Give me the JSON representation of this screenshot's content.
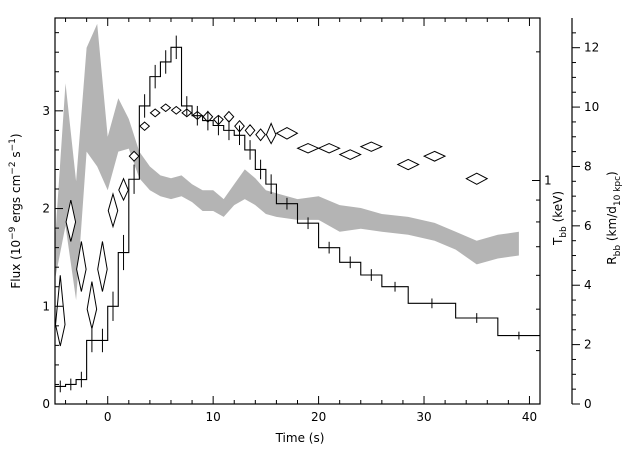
{
  "chart_data": {
    "type": "line",
    "xlabel": "Time (s)",
    "ylabel_left": "Flux (10^-9 ergs cm^-2 s^-1)",
    "ylabel_right_T": "T_bb (keV)",
    "ylabel_right_R": "R_bb (km/d_10 kpc)",
    "xlim": [
      -5,
      41
    ],
    "ylim_left": [
      0,
      3.95
    ],
    "ylim_R": [
      0,
      13
    ],
    "ylim_T_log": [
      0.3,
      2.4
    ],
    "grid": false,
    "x_ticks": [
      "0",
      "10",
      "20",
      "30",
      "40"
    ],
    "x_tick_values": [
      0,
      10,
      20,
      30,
      40
    ],
    "y_left_ticks": [
      "0",
      "1",
      "2",
      "3"
    ],
    "y_left_tick_values": [
      0,
      1,
      2,
      3
    ],
    "y_R_ticks": [
      "0",
      "2",
      "4",
      "6",
      "8",
      "10",
      "12"
    ],
    "y_R_tick_values": [
      0,
      2,
      4,
      6,
      8,
      10,
      12
    ],
    "y_T_ticks": [
      "1"
    ],
    "y_T_tick_values": [
      1
    ],
    "series": [
      {
        "kind": "flux-histogram",
        "bins": [
          [
            -5,
            -4,
            0.18
          ],
          [
            -4,
            -3,
            0.2
          ],
          [
            -3,
            -2,
            0.25
          ],
          [
            -2,
            -1,
            0.65
          ],
          [
            -1,
            0,
            0.65
          ],
          [
            0,
            1,
            1.0
          ],
          [
            1,
            2,
            1.55
          ],
          [
            2,
            3,
            2.3
          ],
          [
            3,
            4,
            3.05
          ],
          [
            4,
            5,
            3.35
          ],
          [
            5,
            6,
            3.5
          ],
          [
            6,
            7,
            3.65
          ],
          [
            7,
            8,
            3.05
          ],
          [
            8,
            9,
            2.95
          ],
          [
            9,
            10,
            2.9
          ],
          [
            10,
            11,
            2.85
          ],
          [
            11,
            12,
            2.8
          ],
          [
            12,
            13,
            2.75
          ],
          [
            13,
            14,
            2.6
          ],
          [
            14,
            15,
            2.4
          ],
          [
            15,
            16,
            2.25
          ],
          [
            16,
            18,
            2.05
          ],
          [
            18,
            20,
            1.85
          ],
          [
            20,
            22,
            1.6
          ],
          [
            22,
            24,
            1.45
          ],
          [
            24,
            26,
            1.32
          ],
          [
            26,
            28.5,
            1.2
          ],
          [
            28.5,
            33,
            1.03
          ],
          [
            33,
            37,
            0.88
          ],
          [
            37,
            41,
            0.7
          ]
        ],
        "errors": [
          [
            -4.5,
            0.06
          ],
          [
            -3.5,
            0.06
          ],
          [
            -2.5,
            0.08
          ],
          [
            -1.5,
            0.12
          ],
          [
            -0.5,
            0.12
          ],
          [
            0.5,
            0.15
          ],
          [
            1.5,
            0.18
          ],
          [
            2.5,
            0.15
          ],
          [
            3.5,
            0.12
          ],
          [
            4.5,
            0.12
          ],
          [
            5.5,
            0.12
          ],
          [
            6.5,
            0.12
          ],
          [
            7.5,
            0.1
          ],
          [
            8.5,
            0.1
          ],
          [
            9.5,
            0.1
          ],
          [
            10.5,
            0.1
          ],
          [
            11.5,
            0.1
          ],
          [
            12.5,
            0.1
          ],
          [
            13.5,
            0.1
          ],
          [
            14.5,
            0.1
          ],
          [
            15.5,
            0.1
          ],
          [
            17,
            0.06
          ],
          [
            19,
            0.06
          ],
          [
            21,
            0.06
          ],
          [
            23,
            0.06
          ],
          [
            25,
            0.06
          ],
          [
            27.25,
            0.05
          ],
          [
            30.75,
            0.05
          ],
          [
            35,
            0.05
          ],
          [
            39,
            0.04
          ]
        ]
      },
      {
        "kind": "radius-band",
        "x": [
          -5,
          -4,
          -3,
          -2,
          -1,
          0,
          1,
          2,
          3,
          4,
          5,
          6,
          7,
          8,
          9,
          10,
          11,
          12,
          13,
          14,
          15,
          16,
          18,
          20,
          22,
          24,
          26,
          28.5,
          31,
          33,
          35,
          37,
          39
        ],
        "low": [
          4.2,
          6.0,
          3.5,
          8.5,
          8.0,
          7.2,
          8.5,
          8.6,
          7.6,
          7.2,
          7.0,
          6.9,
          7.0,
          6.8,
          6.5,
          6.5,
          6.3,
          6.7,
          6.9,
          6.7,
          6.4,
          6.3,
          6.2,
          6.2,
          5.8,
          5.9,
          5.8,
          5.7,
          5.5,
          5.2,
          4.7,
          4.9,
          5.0
        ],
        "high": [
          5.5,
          10.8,
          7.5,
          12.0,
          12.8,
          9.0,
          10.3,
          9.6,
          8.5,
          8.0,
          7.7,
          7.6,
          7.7,
          7.4,
          7.2,
          7.2,
          6.9,
          7.4,
          7.9,
          7.6,
          7.2,
          7.1,
          6.9,
          7.0,
          6.7,
          6.6,
          6.4,
          6.3,
          6.1,
          5.8,
          5.5,
          5.7,
          5.8
        ]
      },
      {
        "kind": "temperature-diamonds",
        "points": [
          [
            -4.5,
            0.46,
            0.6,
            0.41
          ],
          [
            -3.5,
            0.8,
            0.9,
            0.72
          ],
          [
            -2.5,
            0.62,
            0.72,
            0.55
          ],
          [
            -1.5,
            0.5,
            0.58,
            0.45
          ],
          [
            -0.5,
            0.62,
            0.72,
            0.55
          ],
          [
            0.5,
            0.85,
            0.93,
            0.78
          ],
          [
            1.5,
            0.95,
            1.01,
            0.9
          ],
          [
            2.5,
            1.14,
            1.17,
            1.11
          ],
          [
            3.5,
            1.34,
            1.37,
            1.31
          ],
          [
            4.5,
            1.44,
            1.47,
            1.41
          ],
          [
            5.5,
            1.48,
            1.51,
            1.45
          ],
          [
            6.5,
            1.46,
            1.49,
            1.43
          ],
          [
            7.5,
            1.44,
            1.47,
            1.41
          ],
          [
            8.5,
            1.42,
            1.45,
            1.39
          ],
          [
            9.5,
            1.41,
            1.45,
            1.37
          ],
          [
            10.5,
            1.39,
            1.42,
            1.35
          ],
          [
            11.5,
            1.41,
            1.45,
            1.37
          ],
          [
            12.5,
            1.34,
            1.38,
            1.3
          ],
          [
            13.5,
            1.31,
            1.35,
            1.27
          ],
          [
            14.5,
            1.28,
            1.32,
            1.24
          ],
          [
            15.5,
            1.28,
            1.36,
            1.22
          ],
          [
            17,
            1.29,
            1.33,
            1.25
          ],
          [
            19,
            1.19,
            1.22,
            1.16
          ],
          [
            21,
            1.19,
            1.22,
            1.16
          ],
          [
            23,
            1.15,
            1.18,
            1.12
          ],
          [
            25,
            1.2,
            1.23,
            1.17
          ],
          [
            28.5,
            1.09,
            1.12,
            1.06
          ],
          [
            31,
            1.14,
            1.17,
            1.11
          ],
          [
            35,
            1.01,
            1.04,
            0.98
          ]
        ]
      }
    ]
  }
}
